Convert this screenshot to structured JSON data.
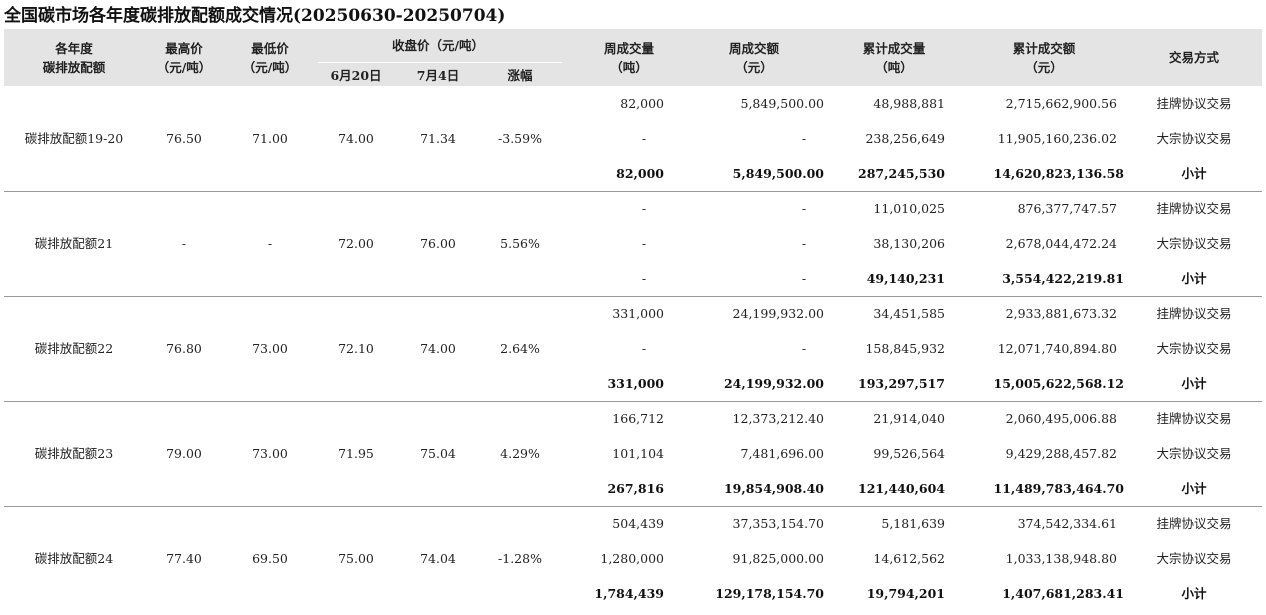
{
  "title": "全国碳市场各年度碳排放配额成交情况(20250630-20250704)",
  "headers": {
    "year_line1": "各年度",
    "year_line2": "碳排放配额",
    "high_line1": "最高价",
    "high_line2": "（元/吨）",
    "low_line1": "最低价",
    "low_line2": "（元/吨）",
    "close_group": "收盘价（元/吨）",
    "close_jun20": "6月20日",
    "close_jul4": "7月4日",
    "change": "涨幅",
    "week_vol_line1": "周成交量",
    "week_vol_line2": "（吨）",
    "week_amt_line1": "周成交额",
    "week_amt_line2": "（元）",
    "cum_vol_line1": "累计成交量",
    "cum_vol_line2": "（吨）",
    "cum_amt_line1": "累计成交额",
    "cum_amt_line2": "（元）",
    "method": "交易方式"
  },
  "groups": [
    {
      "name": "碳排放配额19-20",
      "high": "76.50",
      "low": "71.00",
      "close_jun20": "74.00",
      "close_jul4": "71.34",
      "change": "-3.59%",
      "rows": [
        {
          "week_vol": "82,000",
          "week_amt": "5,849,500.00",
          "cum_vol": "48,988,881",
          "cum_amt": "2,715,662,900.56",
          "method": "挂牌协议交易"
        },
        {
          "week_vol": "-",
          "week_amt": "-",
          "cum_vol": "238,256,649",
          "cum_amt": "11,905,160,236.02",
          "method": "大宗协议交易"
        },
        {
          "week_vol": "82,000",
          "week_amt": "5,849,500.00",
          "cum_vol": "287,245,530",
          "cum_amt": "14,620,823,136.58",
          "method": "小计"
        }
      ]
    },
    {
      "name": "碳排放配额21",
      "high": "-",
      "low": "-",
      "close_jun20": "72.00",
      "close_jul4": "76.00",
      "change": "5.56%",
      "rows": [
        {
          "week_vol": "-",
          "week_amt": "-",
          "cum_vol": "11,010,025",
          "cum_amt": "876,377,747.57",
          "method": "挂牌协议交易"
        },
        {
          "week_vol": "-",
          "week_amt": "-",
          "cum_vol": "38,130,206",
          "cum_amt": "2,678,044,472.24",
          "method": "大宗协议交易"
        },
        {
          "week_vol": "-",
          "week_amt": "-",
          "cum_vol": "49,140,231",
          "cum_amt": "3,554,422,219.81",
          "method": "小计"
        }
      ]
    },
    {
      "name": "碳排放配额22",
      "high": "76.80",
      "low": "73.00",
      "close_jun20": "72.10",
      "close_jul4": "74.00",
      "change": "2.64%",
      "rows": [
        {
          "week_vol": "331,000",
          "week_amt": "24,199,932.00",
          "cum_vol": "34,451,585",
          "cum_amt": "2,933,881,673.32",
          "method": "挂牌协议交易"
        },
        {
          "week_vol": "-",
          "week_amt": "-",
          "cum_vol": "158,845,932",
          "cum_amt": "12,071,740,894.80",
          "method": "大宗协议交易"
        },
        {
          "week_vol": "331,000",
          "week_amt": "24,199,932.00",
          "cum_vol": "193,297,517",
          "cum_amt": "15,005,622,568.12",
          "method": "小计"
        }
      ]
    },
    {
      "name": "碳排放配额23",
      "high": "79.00",
      "low": "73.00",
      "close_jun20": "71.95",
      "close_jul4": "75.04",
      "change": "4.29%",
      "rows": [
        {
          "week_vol": "166,712",
          "week_amt": "12,373,212.40",
          "cum_vol": "21,914,040",
          "cum_amt": "2,060,495,006.88",
          "method": "挂牌协议交易"
        },
        {
          "week_vol": "101,104",
          "week_amt": "7,481,696.00",
          "cum_vol": "99,526,564",
          "cum_amt": "9,429,288,457.82",
          "method": "大宗协议交易"
        },
        {
          "week_vol": "267,816",
          "week_amt": "19,854,908.40",
          "cum_vol": "121,440,604",
          "cum_amt": "11,489,783,464.70",
          "method": "小计"
        }
      ]
    },
    {
      "name": "碳排放配额24",
      "high": "77.40",
      "low": "69.50",
      "close_jun20": "75.00",
      "close_jul4": "74.04",
      "change": "-1.28%",
      "rows": [
        {
          "week_vol": "504,439",
          "week_amt": "37,353,154.70",
          "cum_vol": "5,181,639",
          "cum_amt": "374,542,334.61",
          "method": "挂牌协议交易"
        },
        {
          "week_vol": "1,280,000",
          "week_amt": "91,825,000.00",
          "cum_vol": "14,612,562",
          "cum_amt": "1,033,138,948.80",
          "method": "大宗协议交易"
        },
        {
          "week_vol": "1,784,439",
          "week_amt": "129,178,154.70",
          "cum_vol": "19,794,201",
          "cum_amt": "1,407,681,283.41",
          "method": "小计"
        }
      ]
    }
  ]
}
